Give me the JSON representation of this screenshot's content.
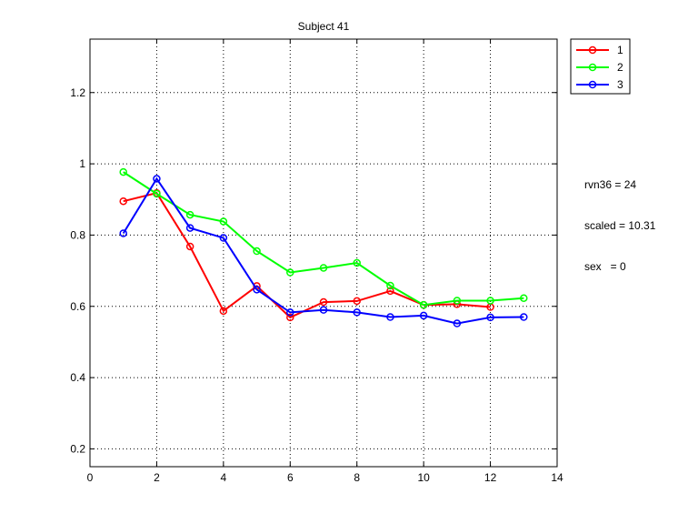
{
  "chart_data": {
    "type": "line",
    "title": "Subject 41",
    "xlabel": "",
    "ylabel": "",
    "xlim": [
      0,
      14
    ],
    "ylim": [
      0.15,
      1.35
    ],
    "xticks": [
      0,
      2,
      4,
      6,
      8,
      10,
      12,
      14
    ],
    "yticks": [
      0.2,
      0.4,
      0.6,
      0.8,
      1,
      1.2
    ],
    "grid": true,
    "legend_position": "outside-top-right",
    "marker": "circle",
    "series": [
      {
        "name": "1",
        "color": "#ff0000",
        "x": [
          1,
          2,
          3,
          4,
          5,
          6,
          7,
          8,
          9,
          10,
          11,
          12
        ],
        "y": [
          0.895,
          0.918,
          0.768,
          0.587,
          0.657,
          0.569,
          0.612,
          0.615,
          0.643,
          0.604,
          0.606,
          0.598
        ]
      },
      {
        "name": "2",
        "color": "#00ff00",
        "x": [
          1,
          2,
          3,
          4,
          5,
          6,
          7,
          8,
          9,
          10,
          11,
          12,
          13
        ],
        "y": [
          0.977,
          0.916,
          0.857,
          0.838,
          0.755,
          0.695,
          0.708,
          0.722,
          0.658,
          0.604,
          0.616,
          0.616,
          0.623
        ]
      },
      {
        "name": "3",
        "color": "#0000ff",
        "x": [
          1,
          2,
          3,
          4,
          5,
          6,
          7,
          8,
          9,
          10,
          11,
          12,
          13
        ],
        "y": [
          0.805,
          0.958,
          0.82,
          0.792,
          0.647,
          0.583,
          0.59,
          0.583,
          0.57,
          0.574,
          0.552,
          0.569,
          0.57
        ]
      }
    ],
    "annotations": [
      "rvn36 = 24",
      "scaled = 10.31",
      "sex   = 0"
    ]
  }
}
